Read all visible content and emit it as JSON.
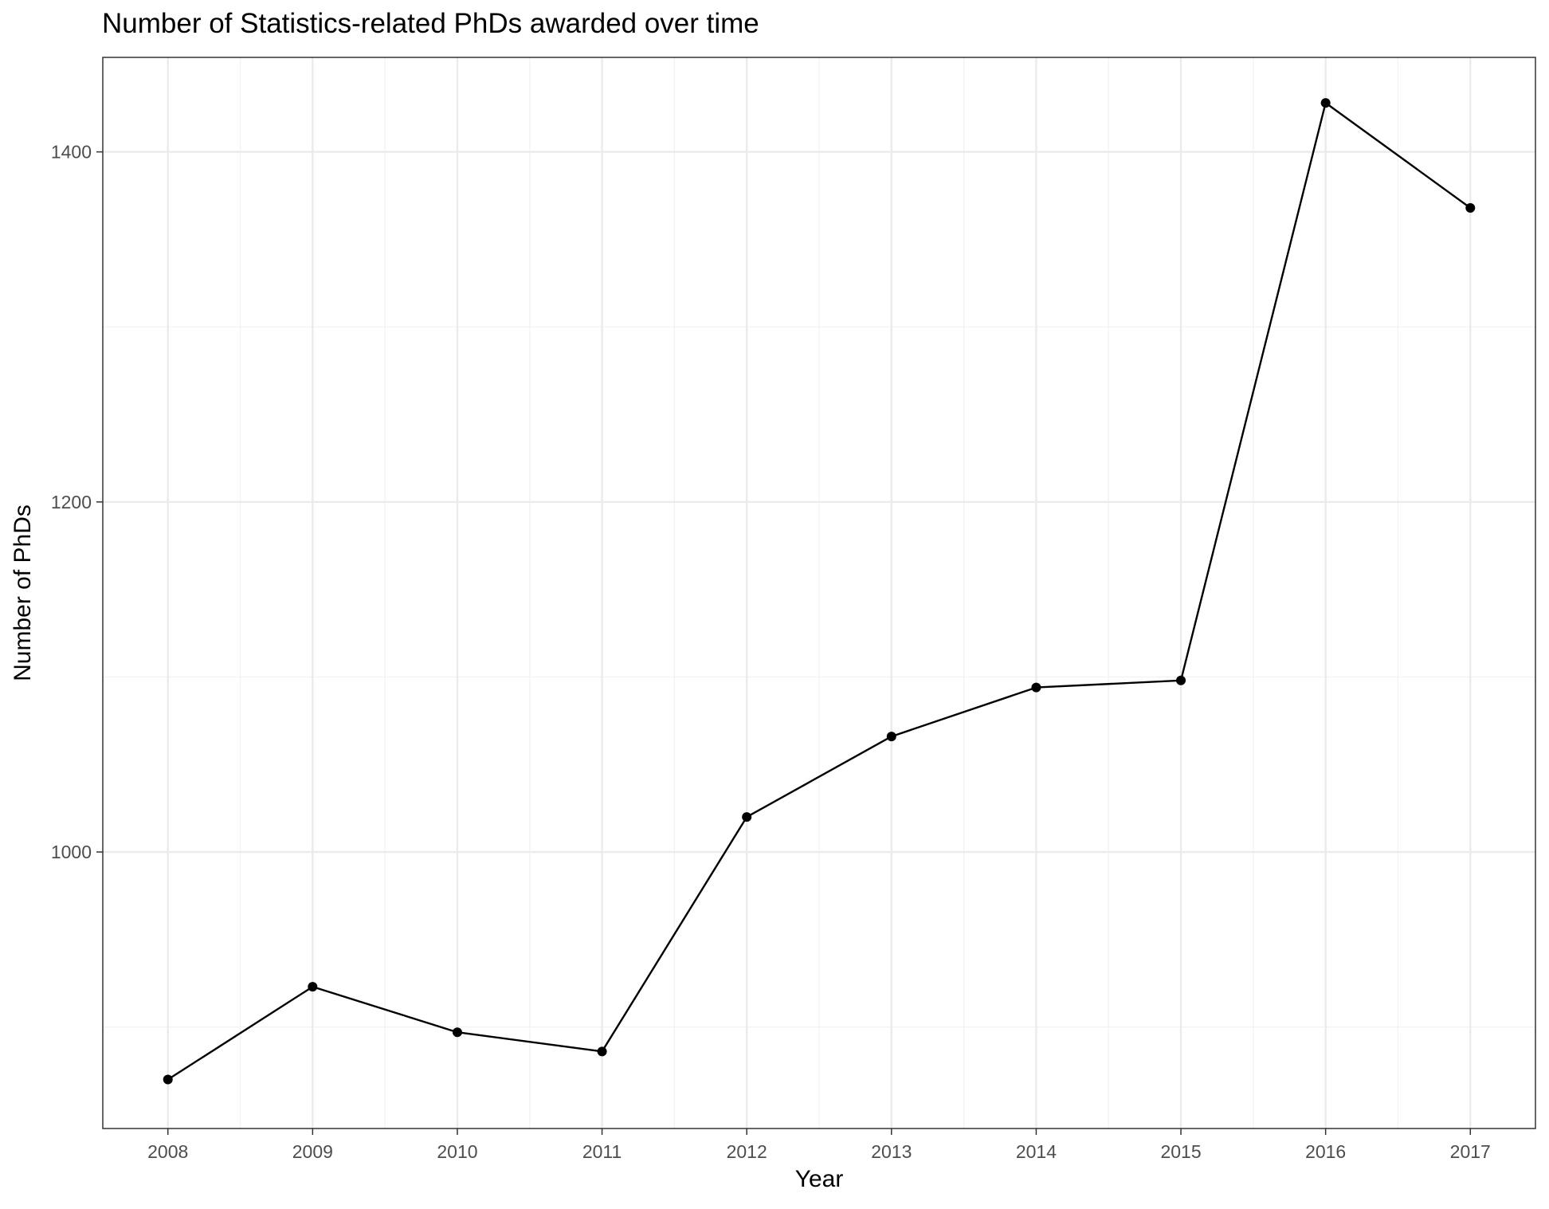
{
  "chart_data": {
    "type": "line",
    "title": "Number of Statistics-related PhDs awarded over time",
    "xlabel": "Year",
    "ylabel": "Number of PhDs",
    "x": [
      2008,
      2009,
      2010,
      2011,
      2012,
      2013,
      2014,
      2015,
      2016,
      2017
    ],
    "series": [
      {
        "name": "",
        "values": [
          870,
          923,
          897,
          886,
          1020,
          1066,
          1094,
          1098,
          1428,
          1368
        ]
      }
    ],
    "x_ticks": [
      "2008",
      "2009",
      "2010",
      "2011",
      "2012",
      "2013",
      "2014",
      "2015",
      "2016",
      "2017"
    ],
    "y_ticks": [
      1000,
      1200,
      1400
    ],
    "xlim": [
      2007.55,
      2017.45
    ],
    "ylim": [
      842,
      1454
    ],
    "grid": true,
    "legend": "none",
    "colors": {
      "line": "#000000",
      "point": "#000000",
      "grid_major": "#ebebeb",
      "grid_minor": "#f2f2f2",
      "panel_border": "#333333",
      "tick_label": "#4d4d4d"
    }
  }
}
